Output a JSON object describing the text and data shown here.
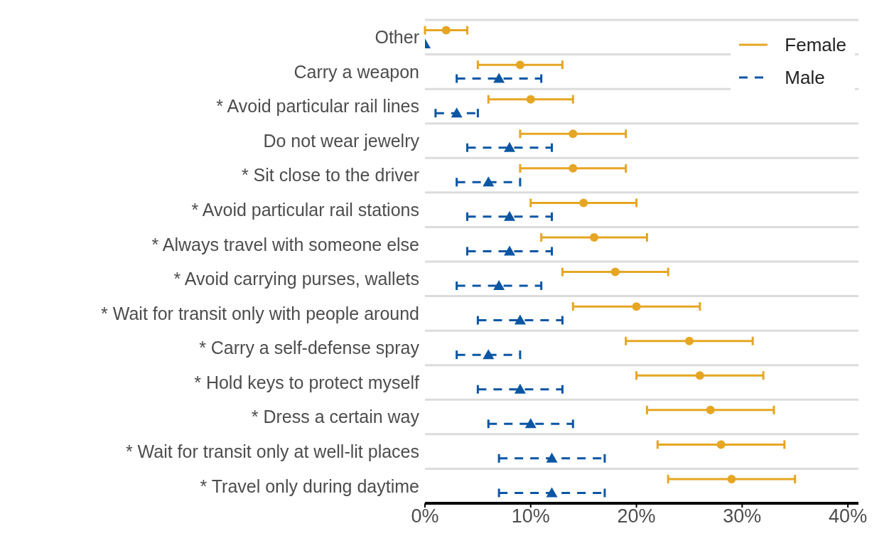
{
  "chart_data": {
    "type": "scatter",
    "orientation": "horizontal",
    "categories": [
      "Other",
      "Carry a weapon",
      "* Avoid particular rail lines",
      "Do not wear jewelry",
      "* Sit close to the driver",
      "* Avoid particular rail stations",
      "* Always travel with someone else",
      "* Avoid carrying purses, wallets",
      "* Wait for transit only with people around",
      "* Carry a self-defense spray",
      "* Hold keys to protect myself",
      "* Dress a certain way",
      "* Wait for transit only at well-lit places",
      "* Travel only during daytime"
    ],
    "series": [
      {
        "name": "Female",
        "color": "#e6a623",
        "marker": "circle",
        "line_style": "solid",
        "values": [
          2,
          9,
          10,
          14,
          14,
          15,
          16,
          18,
          20,
          25,
          26,
          27,
          28,
          29
        ],
        "errors": [
          [
            0,
            4
          ],
          [
            5,
            13
          ],
          [
            6,
            14
          ],
          [
            9,
            19
          ],
          [
            9,
            19
          ],
          [
            10,
            20
          ],
          [
            11,
            21
          ],
          [
            13,
            23
          ],
          [
            14,
            26
          ],
          [
            19,
            31
          ],
          [
            20,
            32
          ],
          [
            21,
            33
          ],
          [
            22,
            34
          ],
          [
            23,
            35
          ]
        ]
      },
      {
        "name": "Male",
        "color": "#0b56a4",
        "marker": "triangle",
        "line_style": "dashed",
        "values": [
          0,
          7,
          3,
          8,
          6,
          8,
          8,
          7,
          9,
          6,
          9,
          10,
          12,
          12
        ],
        "errors": [
          null,
          [
            3,
            11
          ],
          [
            1,
            5
          ],
          [
            4,
            12
          ],
          [
            3,
            9
          ],
          [
            4,
            12
          ],
          [
            4,
            12
          ],
          [
            3,
            11
          ],
          [
            5,
            13
          ],
          [
            3,
            9
          ],
          [
            5,
            13
          ],
          [
            6,
            14
          ],
          [
            7,
            17
          ],
          [
            7,
            17
          ]
        ]
      }
    ],
    "xlim": [
      0,
      41
    ],
    "xticks": [
      {
        "value": 0,
        "label": "0%"
      },
      {
        "value": 10,
        "label": "10%"
      },
      {
        "value": 20,
        "label": "20%"
      },
      {
        "value": 30,
        "label": "30%"
      },
      {
        "value": 40,
        "label": "40%"
      }
    ],
    "grid": "y",
    "legend": "top right"
  }
}
